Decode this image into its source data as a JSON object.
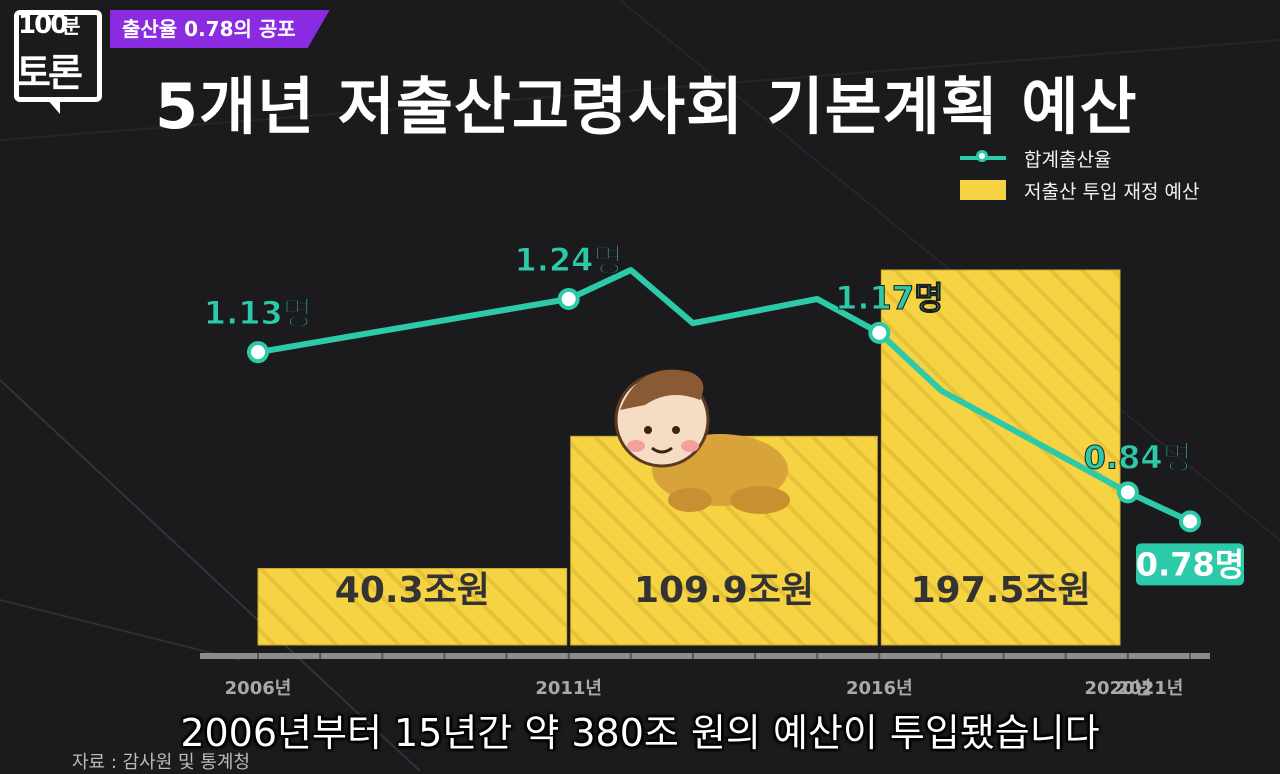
{
  "header": {
    "logo_number": "100",
    "logo_sub1": "분",
    "logo_sub2": "토론",
    "tag": "출산율 0.78의 공포"
  },
  "title": "5개년 저출산고령사회 기본계획 예산",
  "legend": {
    "line_label": "합계출산율",
    "bar_label": "저출산 투입 재정 예산"
  },
  "colors": {
    "bar": "#f5d342",
    "line": "#2ccaa8",
    "tag": "#8a2be2"
  },
  "chart_data": {
    "type": "bar",
    "title": "5개년 저출산고령사회 기본계획 예산",
    "x_ticks": [
      "2006년",
      "2011년",
      "2016년",
      "2020년",
      "2021년"
    ],
    "bars": [
      {
        "start": 2006,
        "end": 2011,
        "value": 40.3,
        "label": "40.3조원"
      },
      {
        "start": 2011,
        "end": 2016,
        "value": 109.9,
        "label": "109.9조원"
      },
      {
        "start": 2016,
        "end": 2021,
        "value": 197.5,
        "label": "197.5조원"
      }
    ],
    "bar_series_name": "저출산 투입 재정 예산",
    "line_series_name": "합계출산율",
    "line_points": [
      {
        "x": 2006,
        "y": 1.13,
        "label": "1.13명"
      },
      {
        "x": 2011,
        "y": 1.24,
        "label": "1.24명"
      },
      {
        "x": 2012,
        "y": 1.3,
        "label": ""
      },
      {
        "x": 2013,
        "y": 1.19,
        "label": ""
      },
      {
        "x": 2015,
        "y": 1.24,
        "label": ""
      },
      {
        "x": 2016,
        "y": 1.17,
        "label": "1.17명"
      },
      {
        "x": 2017,
        "y": 1.05,
        "label": ""
      },
      {
        "x": 2018,
        "y": 0.98,
        "label": ""
      },
      {
        "x": 2020,
        "y": 0.84,
        "label": "0.84명"
      },
      {
        "x": 2021,
        "y": 0.78,
        "label": "0.78명"
      }
    ],
    "y_bar_max": 197.5,
    "y_line_range": [
      0.7,
      1.3
    ]
  },
  "subtitle": "2006년부터 15년간 약 380조 원의 예산이 투입됐습니다",
  "source": "자료 : 감사원 및 통계청"
}
